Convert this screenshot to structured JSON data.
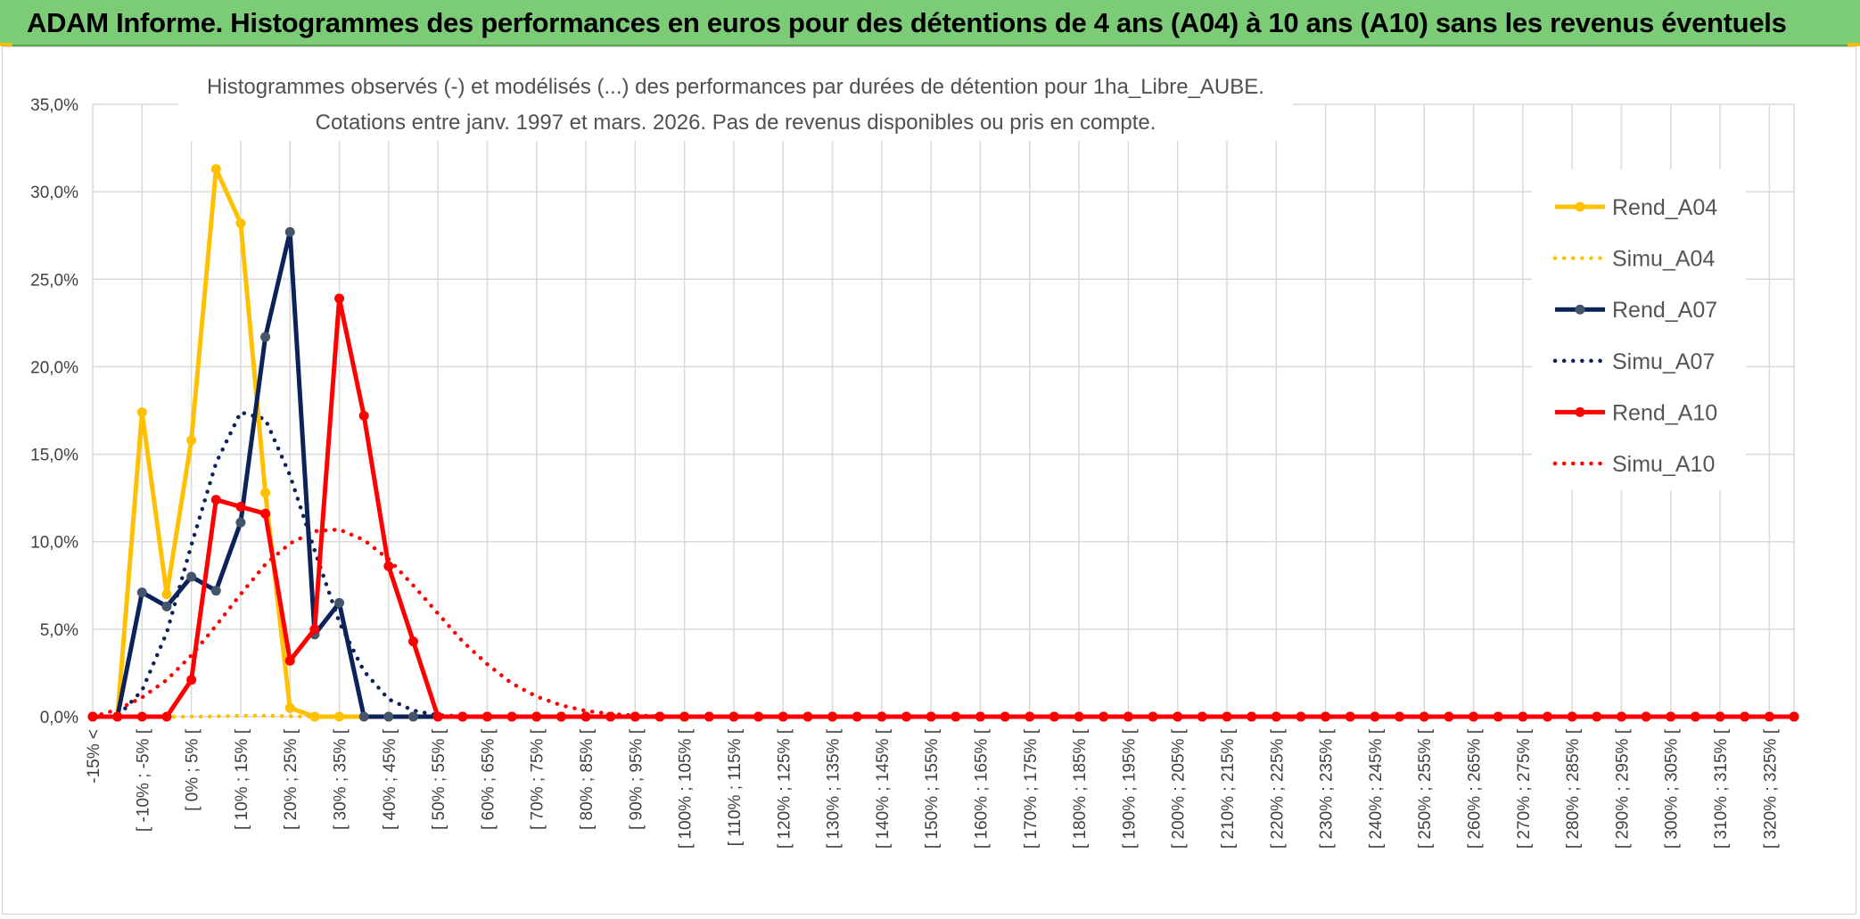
{
  "header": {
    "title": "ADAM Informe. Histogrammes des performances en euros pour des détentions de 4 ans (A04) à 10 ans (A10) sans les revenus éventuels",
    "background_color": "#7ccb77"
  },
  "chart_data": {
    "type": "line",
    "title": "Histogrammes observés (-) et modélisés (...) des performances par durées de détention pour 1ha_Libre_AUBE.",
    "subtitle": "Cotations entre janv. 1997 et mars. 2026. Pas de revenus disponibles ou pris en compte.",
    "xlabel": "",
    "ylabel": "",
    "ylim": [
      0,
      35
    ],
    "y_ticks": [
      "0,0%",
      "5,0%",
      "10,0%",
      "15,0%",
      "20,0%",
      "25,0%",
      "30,0%",
      "35,0%"
    ],
    "grid": true,
    "legend_position": "right",
    "x_labels": [
      "-15% <",
      "[ -10% ; -5% [",
      "[ 0% ; 5% [",
      "[ 10% ; 15% [",
      "[ 20% ; 25% [",
      "[ 30% ; 35% [",
      "[ 40% ; 45% [",
      "[ 50% ; 55% [",
      "[ 60% ; 65% [",
      "[ 70% ; 75% [",
      "[ 80% ; 85% [",
      "[ 90% ; 95% [",
      "[ 100% ; 105% [",
      "[ 110% ; 115% [",
      "[ 120% ; 125% [",
      "[ 130% ; 135% [",
      "[ 140% ; 145% [",
      "[ 150% ; 155% [",
      "[ 160% ; 165% [",
      "[ 170% ; 175% [",
      "[ 180% ; 185% [",
      "[ 190% ; 195% [",
      "[ 200% ; 205% [",
      "[ 210% ; 215% [",
      "[ 220% ; 225% [",
      "[ 230% ; 235% [",
      "[ 240% ; 245% [",
      "[ 250% ; 255% [",
      "[ 260% ; 265% [",
      "[ 270% ; 275% [",
      "[ 280% ; 285% [",
      "[ 290% ; 295% [",
      "[ 300% ; 305% [",
      "[ 310% ; 315% [",
      "[ 320% ; 325% ["
    ],
    "series": [
      {
        "name": "Rend_A04",
        "style": "solid",
        "color": "#ffc000",
        "markers": true,
        "values": [
          0,
          0,
          17.4,
          7.0,
          15.8,
          31.3,
          28.2,
          12.8,
          0.5,
          0,
          0,
          0
        ]
      },
      {
        "name": "Simu_A04",
        "style": "dotted",
        "color": "#ffc000",
        "markers": false,
        "values": [
          0,
          0,
          0,
          0,
          0,
          0.02,
          0.05,
          0.05,
          0.02,
          0,
          0,
          0
        ]
      },
      {
        "name": "Rend_A07",
        "style": "solid",
        "color": "#0d2259",
        "markers": true,
        "values": [
          0,
          0,
          7.1,
          6.3,
          8.0,
          7.2,
          11.1,
          21.7,
          27.7,
          4.7,
          6.5,
          0,
          0,
          0,
          0
        ]
      },
      {
        "name": "Simu_A07",
        "style": "dotted",
        "color": "#0d2259",
        "markers": false,
        "values": [
          0,
          0,
          1.5,
          4.8,
          9.8,
          14.5,
          17.4,
          17.0,
          13.8,
          9.5,
          5.4,
          2.6,
          1.0,
          0.35,
          0.08,
          0.02,
          0
        ]
      },
      {
        "name": "Rend_A10",
        "style": "solid",
        "color": "#ff0000",
        "markers": true,
        "values": [
          0,
          0,
          0,
          0,
          2.1,
          12.4,
          12.0,
          11.6,
          3.2,
          5.0,
          23.9,
          17.2,
          8.6,
          4.3,
          0
        ]
      },
      {
        "name": "Simu_A10",
        "style": "dotted",
        "color": "#ff0000",
        "markers": false,
        "values": [
          0,
          0.4,
          1.1,
          2.1,
          3.5,
          5.2,
          7.0,
          8.7,
          9.9,
          10.6,
          10.7,
          10.1,
          9.0,
          7.5,
          5.9,
          4.3,
          3.0,
          1.9,
          1.15,
          0.65,
          0.33,
          0.16,
          0.07,
          0.03,
          0.01,
          0
        ]
      }
    ],
    "n_points": 70
  }
}
